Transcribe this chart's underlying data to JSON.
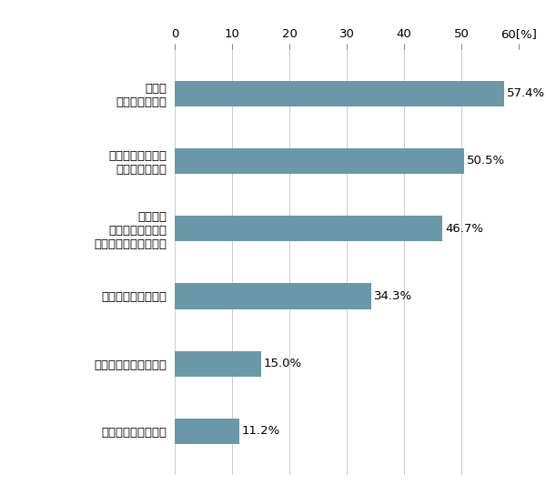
{
  "categories": [
    "短期的に儒けるため",
    "子供や孫の将来のため",
    "株主優待を得るため",
    "使い道は\n決めていないが、\n長期の資産運用のため",
    "配当金、分配金、\n利子を得るため",
    "老後の\n生活資金のため"
  ],
  "values": [
    11.2,
    15.0,
    34.3,
    46.7,
    50.5,
    57.4
  ],
  "bar_color": "#6a98a8",
  "xlim": [
    0,
    60
  ],
  "xticks": [
    0,
    10,
    20,
    30,
    40,
    50,
    60
  ],
  "background_color": "#ffffff",
  "label_fontsize": 9.5,
  "value_fontsize": 9.5,
  "tick_fontsize": 9.5,
  "bar_height": 0.38
}
